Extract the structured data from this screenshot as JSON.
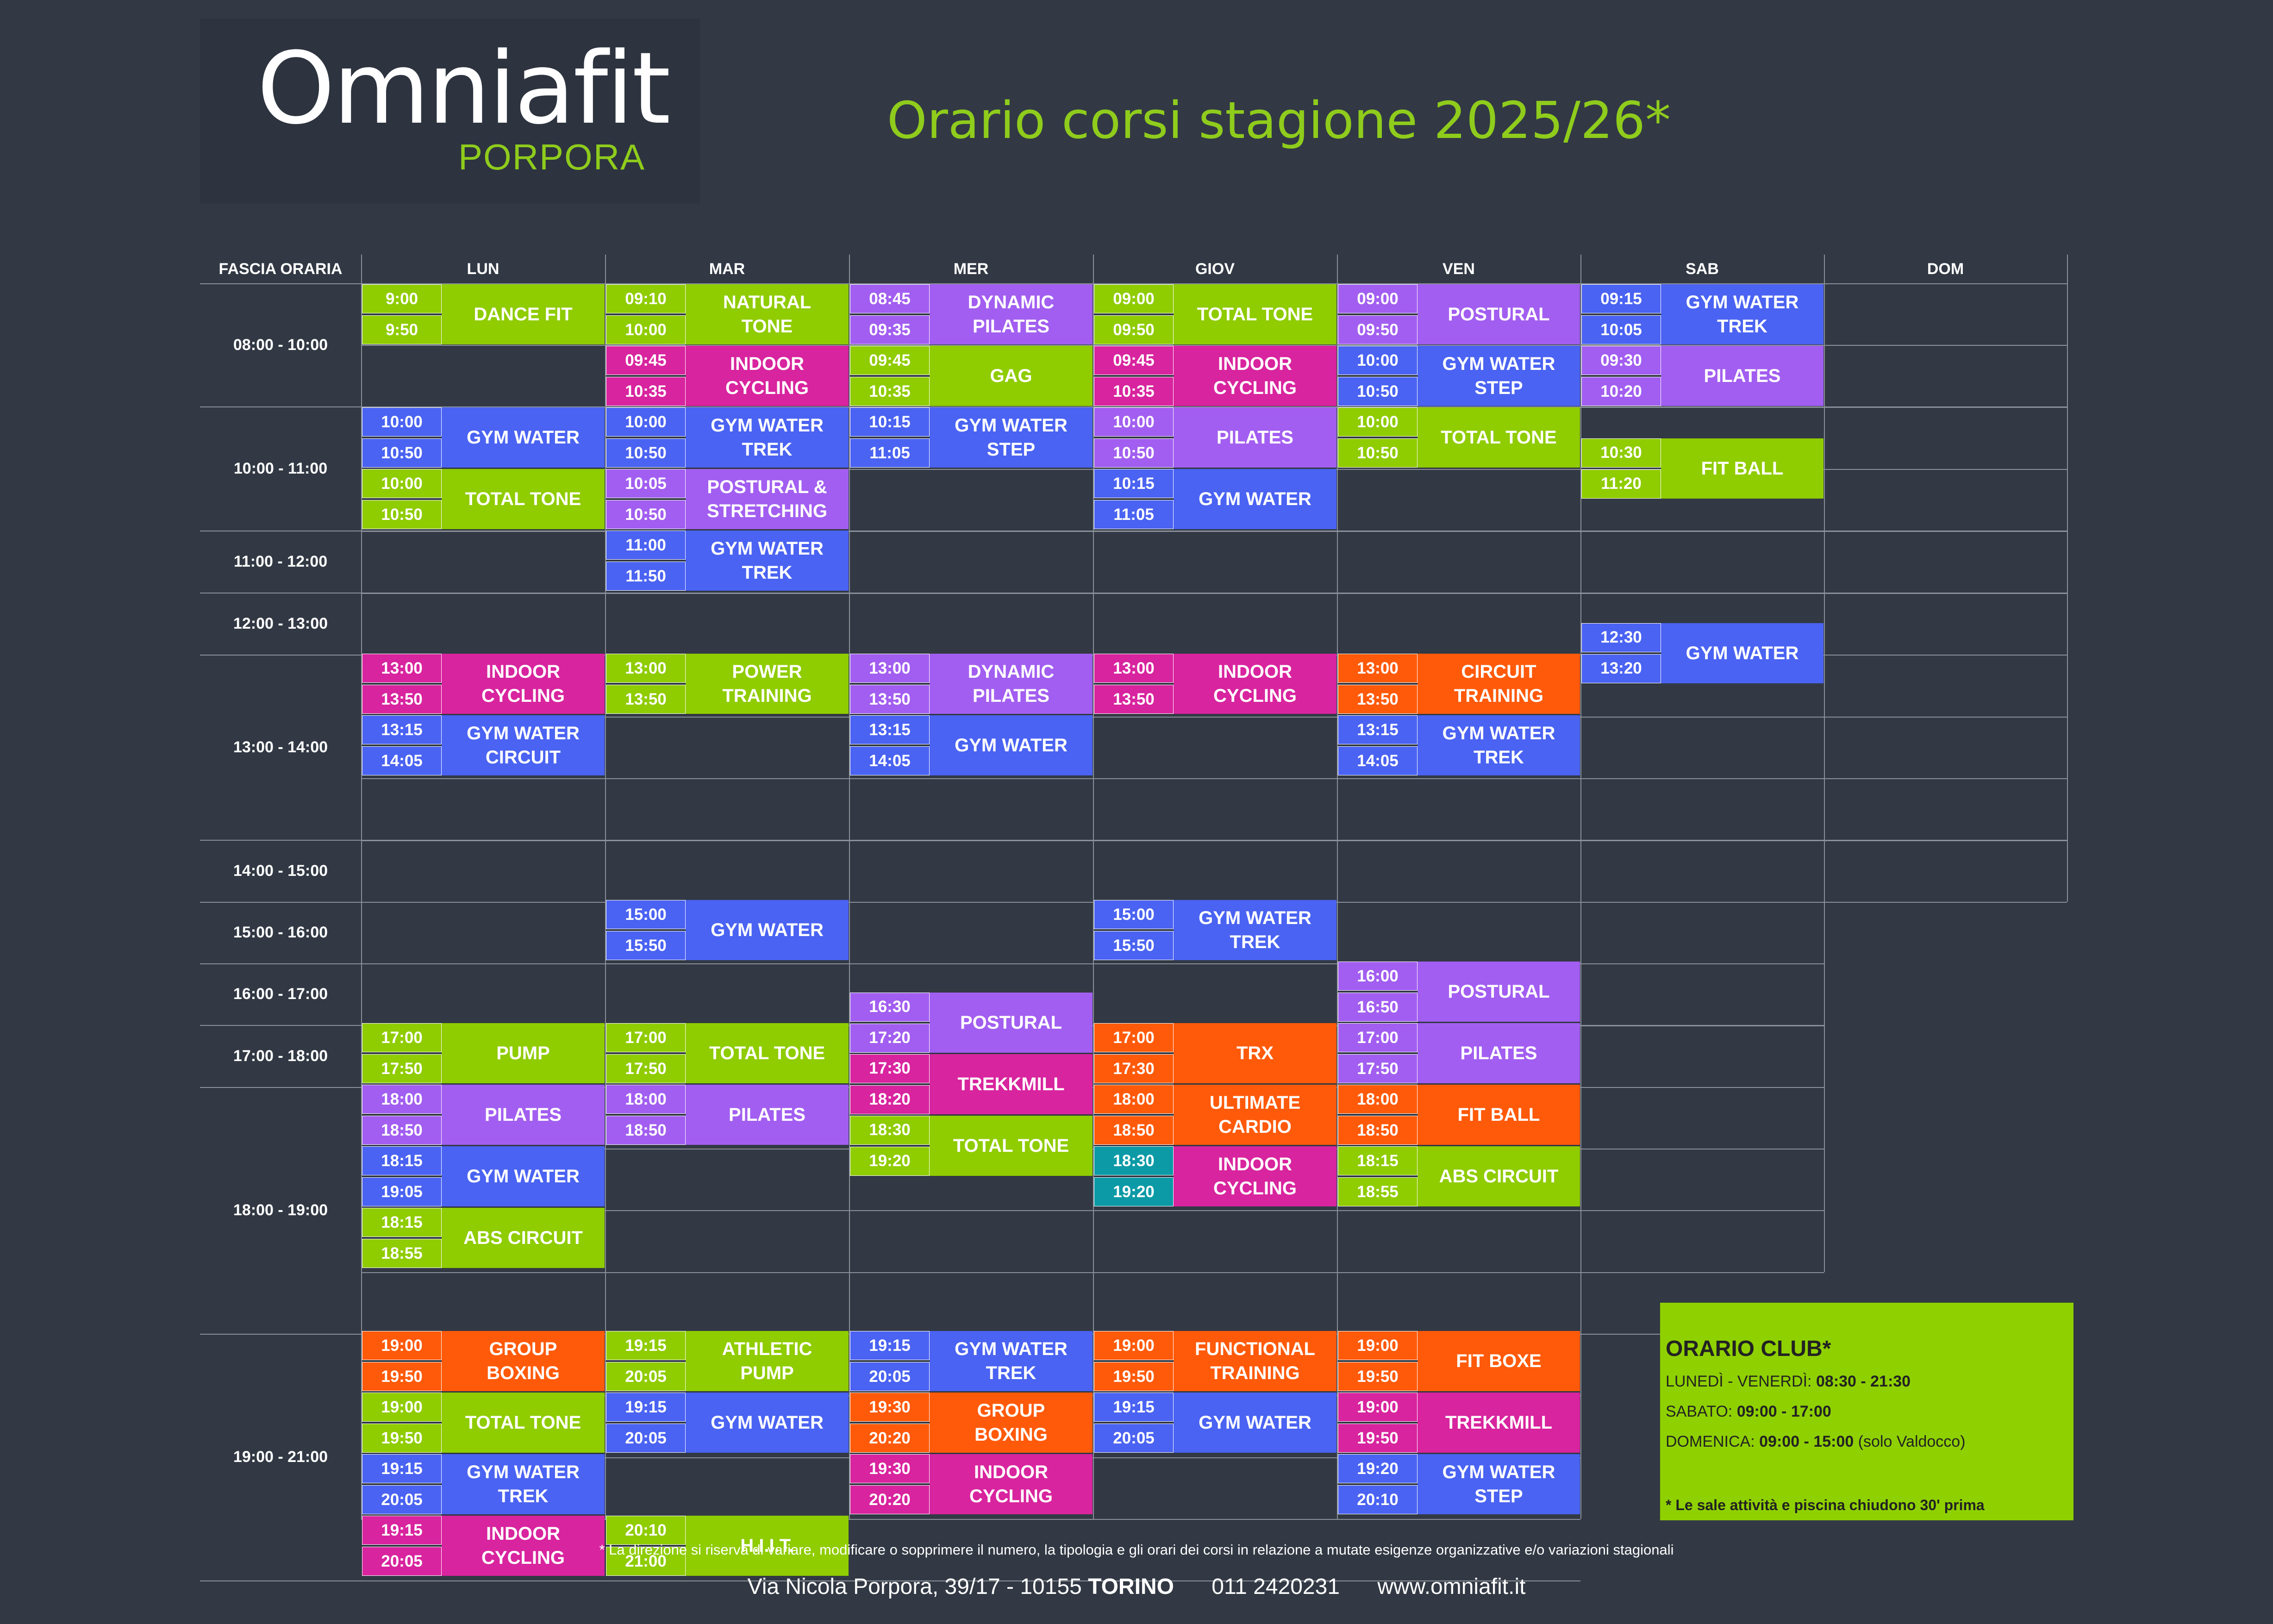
{
  "logo": {
    "main": "Omniafit",
    "sub": "PORPORA"
  },
  "title": "Orario corsi stagione 2025/26*",
  "headers": [
    "FASCIA ORARIA",
    "LUN",
    "MAR",
    "MER",
    "GIOV",
    "VEN",
    "SAB",
    "DOM"
  ],
  "slots": [
    "08:00 - 10:00",
    "10:00 - 11:00",
    "11:00 - 12:00",
    "12:00 - 13:00",
    "13:00 - 14:00",
    "14:00 - 15:00",
    "15:00 - 16:00",
    "16:00 - 17:00",
    "17:00 - 18:00",
    "18:00 - 19:00",
    "19:00 - 21:00"
  ],
  "colors": {
    "lime": "#8fcc00",
    "purple": "#a25ef0",
    "blue": "#4a63f2",
    "magenta": "#d8249e",
    "orange": "#ff5a0a",
    "teal": "#0b9aa6",
    "background": "#323944",
    "accent": "#8fcc1c"
  },
  "courses": [
    {
      "day": 0,
      "start": "9:00",
      "end": "9:50",
      "name": "DANCE FIT",
      "color": "lime"
    },
    {
      "day": 0,
      "start": "10:00",
      "end": "10:50",
      "name": "GYM WATER",
      "color": "blue"
    },
    {
      "day": 0,
      "start": "10:00",
      "end": "10:50",
      "name": "TOTAL TONE",
      "color": "lime"
    },
    {
      "day": 0,
      "start": "13:00",
      "end": "13:50",
      "name": "INDOOR\nCYCLING",
      "color": "magenta"
    },
    {
      "day": 0,
      "start": "13:15",
      "end": "14:05",
      "name": "GYM WATER\nCIRCUIT",
      "color": "blue"
    },
    {
      "day": 0,
      "start": "17:00",
      "end": "17:50",
      "name": "PUMP",
      "color": "lime"
    },
    {
      "day": 0,
      "start": "18:00",
      "end": "18:50",
      "name": "PILATES",
      "color": "purple"
    },
    {
      "day": 0,
      "start": "18:15",
      "end": "19:05",
      "name": "GYM WATER",
      "color": "blue"
    },
    {
      "day": 0,
      "start": "18:15",
      "end": "18:55",
      "name": "ABS CIRCUIT",
      "color": "lime"
    },
    {
      "day": 0,
      "start": "19:00",
      "end": "19:50",
      "name": "GROUP\nBOXING",
      "color": "orange"
    },
    {
      "day": 0,
      "start": "19:00",
      "end": "19:50",
      "name": "TOTAL TONE",
      "color": "lime"
    },
    {
      "day": 0,
      "start": "19:15",
      "end": "20:05",
      "name": "GYM WATER\nTREK",
      "color": "blue"
    },
    {
      "day": 0,
      "start": "19:15",
      "end": "20:05",
      "name": "INDOOR\nCYCLING",
      "color": "magenta"
    },
    {
      "day": 1,
      "start": "09:10",
      "end": "10:00",
      "name": "NATURAL\nTONE",
      "color": "lime"
    },
    {
      "day": 1,
      "start": "09:45",
      "end": "10:35",
      "name": "INDOOR\nCYCLING",
      "color": "magenta"
    },
    {
      "day": 1,
      "start": "10:00",
      "end": "10:50",
      "name": "GYM WATER\nTREK",
      "color": "blue"
    },
    {
      "day": 1,
      "start": "10:05",
      "end": "10:50",
      "name": "POSTURAL &\nSTRETCHING",
      "color": "purple"
    },
    {
      "day": 1,
      "start": "11:00",
      "end": "11:50",
      "name": "GYM WATER\nTREK",
      "color": "blue"
    },
    {
      "day": 1,
      "start": "13:00",
      "end": "13:50",
      "name": "POWER\nTRAINING",
      "color": "lime"
    },
    {
      "day": 1,
      "start": "15:00",
      "end": "15:50",
      "name": "GYM WATER",
      "color": "blue"
    },
    {
      "day": 1,
      "start": "17:00",
      "end": "17:50",
      "name": "TOTAL TONE",
      "color": "lime"
    },
    {
      "day": 1,
      "start": "18:00",
      "end": "18:50",
      "name": "PILATES",
      "color": "purple"
    },
    {
      "day": 1,
      "start": "19:15",
      "end": "20:05",
      "name": "ATHLETIC\nPUMP",
      "color": "lime"
    },
    {
      "day": 1,
      "start": "19:15",
      "end": "20:05",
      "name": "GYM WATER",
      "color": "blue"
    },
    {
      "day": 1,
      "start": "20:10",
      "end": "21:00",
      "name": "H.I.I.T.",
      "color": "lime"
    },
    {
      "day": 2,
      "start": "08:45",
      "end": "09:35",
      "name": "DYNAMIC\nPILATES",
      "color": "purple"
    },
    {
      "day": 2,
      "start": "09:45",
      "end": "10:35",
      "name": "GAG",
      "color": "lime"
    },
    {
      "day": 2,
      "start": "10:15",
      "end": "11:05",
      "name": "GYM WATER\nSTEP",
      "color": "blue"
    },
    {
      "day": 2,
      "start": "13:00",
      "end": "13:50",
      "name": "DYNAMIC\nPILATES",
      "color": "purple"
    },
    {
      "day": 2,
      "start": "13:15",
      "end": "14:05",
      "name": "GYM WATER",
      "color": "blue"
    },
    {
      "day": 2,
      "start": "16:30",
      "end": "17:20",
      "name": "POSTURAL",
      "color": "purple"
    },
    {
      "day": 2,
      "start": "17:30",
      "end": "18:20",
      "name": "TREKKMILL",
      "color": "magenta"
    },
    {
      "day": 2,
      "start": "18:30",
      "end": "19:20",
      "name": "TOTAL TONE",
      "color": "lime"
    },
    {
      "day": 2,
      "start": "19:15",
      "end": "20:05",
      "name": "GYM WATER\nTREK",
      "color": "blue"
    },
    {
      "day": 2,
      "start": "19:30",
      "end": "20:20",
      "name": "GROUP\nBOXING",
      "color": "orange"
    },
    {
      "day": 2,
      "start": "19:30",
      "end": "20:20",
      "name": "INDOOR\nCYCLING",
      "color": "magenta"
    },
    {
      "day": 3,
      "start": "09:00",
      "end": "09:50",
      "name": "TOTAL TONE",
      "color": "lime"
    },
    {
      "day": 3,
      "start": "09:45",
      "end": "10:35",
      "name": "INDOOR\nCYCLING",
      "color": "magenta"
    },
    {
      "day": 3,
      "start": "10:00",
      "end": "10:50",
      "name": "PILATES",
      "color": "purple"
    },
    {
      "day": 3,
      "start": "10:15",
      "end": "11:05",
      "name": "GYM WATER",
      "color": "blue"
    },
    {
      "day": 3,
      "start": "13:00",
      "end": "13:50",
      "name": "INDOOR\nCYCLING",
      "color": "magenta"
    },
    {
      "day": 3,
      "start": "15:00",
      "end": "15:50",
      "name": "GYM WATER\nTREK",
      "color": "blue"
    },
    {
      "day": 3,
      "start": "17:00",
      "end": "17:30",
      "name": "TRX",
      "color": "orange"
    },
    {
      "day": 3,
      "start": "18:00",
      "end": "18:50",
      "name": "ULTIMATE\nCARDIO",
      "color": "orange"
    },
    {
      "day": 3,
      "start": "18:30",
      "end": "19:20",
      "name": "INDOOR\nCYCLING",
      "color": "magenta",
      "timeColor": "teal"
    },
    {
      "day": 3,
      "start": "19:00",
      "end": "19:50",
      "name": "FUNCTIONAL\nTRAINING",
      "color": "orange"
    },
    {
      "day": 3,
      "start": "19:15",
      "end": "20:05",
      "name": "GYM WATER",
      "color": "blue"
    },
    {
      "day": 4,
      "start": "09:00",
      "end": "09:50",
      "name": "POSTURAL",
      "color": "purple"
    },
    {
      "day": 4,
      "start": "10:00",
      "end": "10:50",
      "name": "GYM WATER\nSTEP",
      "color": "blue"
    },
    {
      "day": 4,
      "start": "10:00",
      "end": "10:50",
      "name": "TOTAL TONE",
      "color": "lime"
    },
    {
      "day": 4,
      "start": "13:00",
      "end": "13:50",
      "name": "CIRCUIT\nTRAINING",
      "color": "orange"
    },
    {
      "day": 4,
      "start": "13:15",
      "end": "14:05",
      "name": "GYM WATER\nTREK",
      "color": "blue"
    },
    {
      "day": 4,
      "start": "16:00",
      "end": "16:50",
      "name": "POSTURAL",
      "color": "purple"
    },
    {
      "day": 4,
      "start": "17:00",
      "end": "17:50",
      "name": "PILATES",
      "color": "purple"
    },
    {
      "day": 4,
      "start": "18:00",
      "end": "18:50",
      "name": "FIT BALL",
      "color": "orange"
    },
    {
      "day": 4,
      "start": "18:15",
      "end": "18:55",
      "name": "ABS CIRCUIT",
      "color": "lime"
    },
    {
      "day": 4,
      "start": "19:00",
      "end": "19:50",
      "name": "FIT BOXE",
      "color": "orange"
    },
    {
      "day": 4,
      "start": "19:00",
      "end": "19:50",
      "name": "TREKKMILL",
      "color": "magenta"
    },
    {
      "day": 4,
      "start": "19:20",
      "end": "20:10",
      "name": "GYM WATER\nSTEP",
      "color": "blue"
    },
    {
      "day": 5,
      "start": "09:15",
      "end": "10:05",
      "name": "GYM WATER\nTREK",
      "color": "blue"
    },
    {
      "day": 5,
      "start": "09:30",
      "end": "10:20",
      "name": "PILATES",
      "color": "purple"
    },
    {
      "day": 5,
      "start": "10:30",
      "end": "11:20",
      "name": "FIT BALL",
      "color": "lime"
    },
    {
      "day": 5,
      "start": "12:30",
      "end": "13:20",
      "name": "GYM WATER",
      "color": "blue"
    }
  ],
  "club": {
    "title": "ORARIO CLUB*",
    "rows": [
      {
        "label": "LUNEDÌ - VENERDÌ:",
        "value": "08:30 - 21:30",
        "note": ""
      },
      {
        "label": "SABATO:",
        "value": "09:00 - 17:00",
        "note": ""
      },
      {
        "label": "DOMENICA:",
        "value": "09:00 - 15:00",
        "note": "(solo Valdocco)"
      }
    ],
    "note": "* Le sale attività e piscina chiudono 30' prima"
  },
  "disclaimer": "* La direzione si riserva di variare, modificare o sopprimere il numero, la tipologia e gli orari dei corsi in relazione a mutate esigenze organizzative e/o variazioni stagionali",
  "footer": {
    "address": "Via Nicola Porpora, 39/17 - 10155",
    "city": "TORINO",
    "phone": "011 2420231",
    "website": "www.omniafit.it"
  }
}
